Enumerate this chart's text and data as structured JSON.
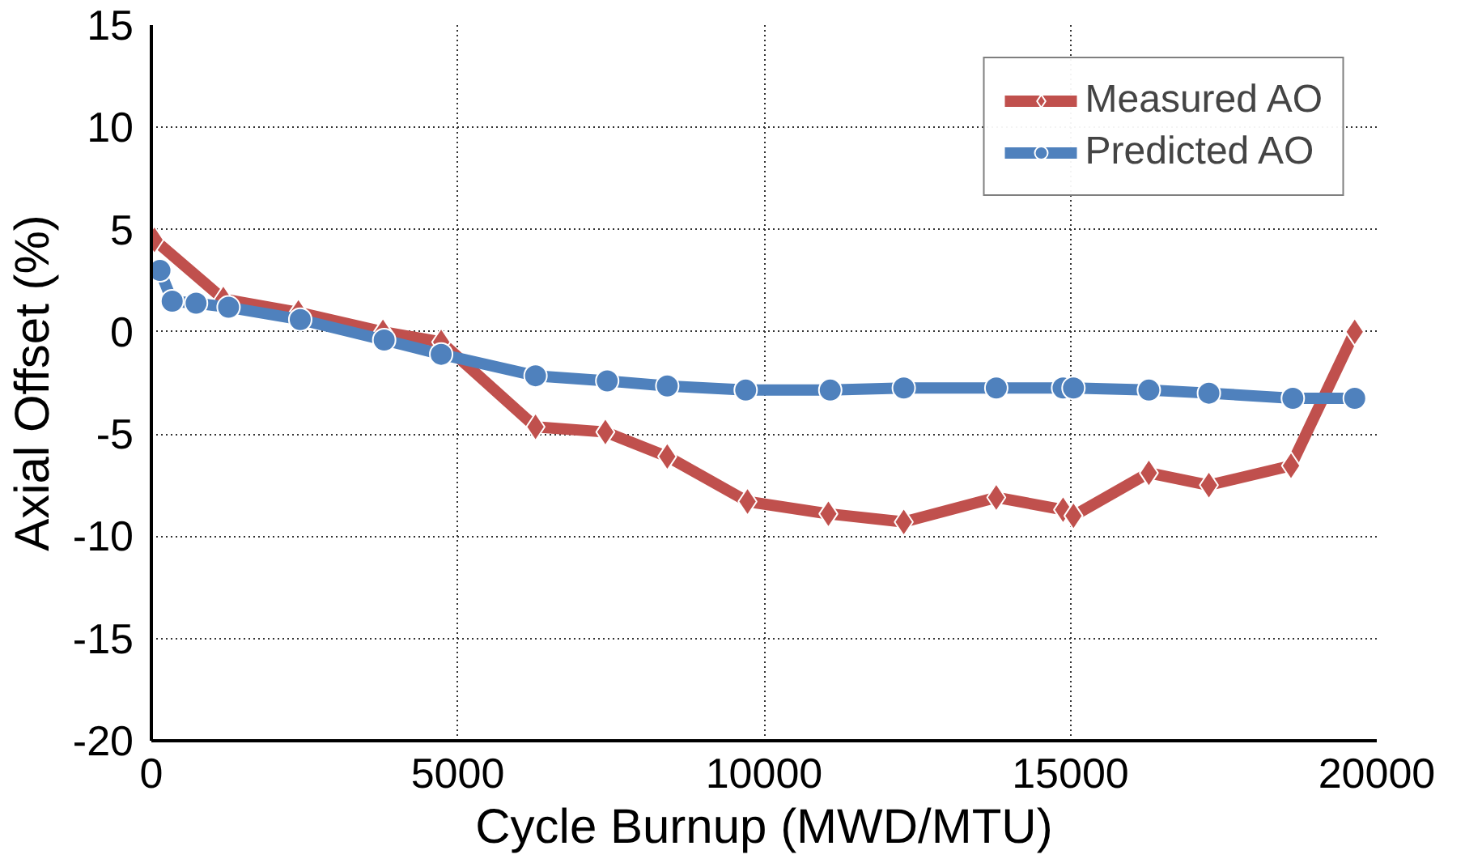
{
  "chart_data": {
    "type": "line",
    "xlabel": "Cycle Burnup (MWD/MTU)",
    "ylabel": "Axial Offset (%)",
    "xlim": [
      0,
      20000
    ],
    "xticks": [
      0,
      5000,
      10000,
      15000,
      20000
    ],
    "ylim": [
      -20,
      15
    ],
    "yticks": [
      -20,
      -15,
      -10,
      -5,
      0,
      5,
      10,
      15
    ],
    "grid": true,
    "legend": "top right",
    "line_style": "solid",
    "series": [
      {
        "name": "Measured AO",
        "color": "#c0504d",
        "marker": "diamond",
        "x": [
          50,
          300,
          750,
          1175,
          2400,
          3780,
          4730,
          6270,
          7410,
          8420,
          9730,
          11050,
          12280,
          13790,
          14880,
          15050,
          16280,
          17260,
          18600,
          19640
        ],
        "values": [
          4.5,
          null,
          null,
          1.6,
          0.95,
          0.0,
          -0.5,
          -4.65,
          -4.9,
          -6.1,
          -8.3,
          -8.9,
          -9.3,
          -8.1,
          -8.7,
          -9.0,
          -6.9,
          -7.5,
          -6.55,
          0.0
        ]
      },
      {
        "name": "Predicted AO",
        "color": "#4f81bd",
        "marker": "circle",
        "x": [
          140,
          340,
          730,
          1260,
          2430,
          3800,
          4730,
          6270,
          7440,
          8420,
          9700,
          11080,
          12280,
          13790,
          14880,
          15050,
          16280,
          17260,
          18630,
          19640
        ],
        "values": [
          3.0,
          1.5,
          1.4,
          1.2,
          0.6,
          -0.4,
          -1.1,
          -2.15,
          -2.4,
          -2.65,
          -2.85,
          -2.85,
          -2.75,
          -2.75,
          -2.75,
          -2.75,
          -2.85,
          -3.0,
          -3.25,
          -3.25
        ]
      }
    ]
  }
}
